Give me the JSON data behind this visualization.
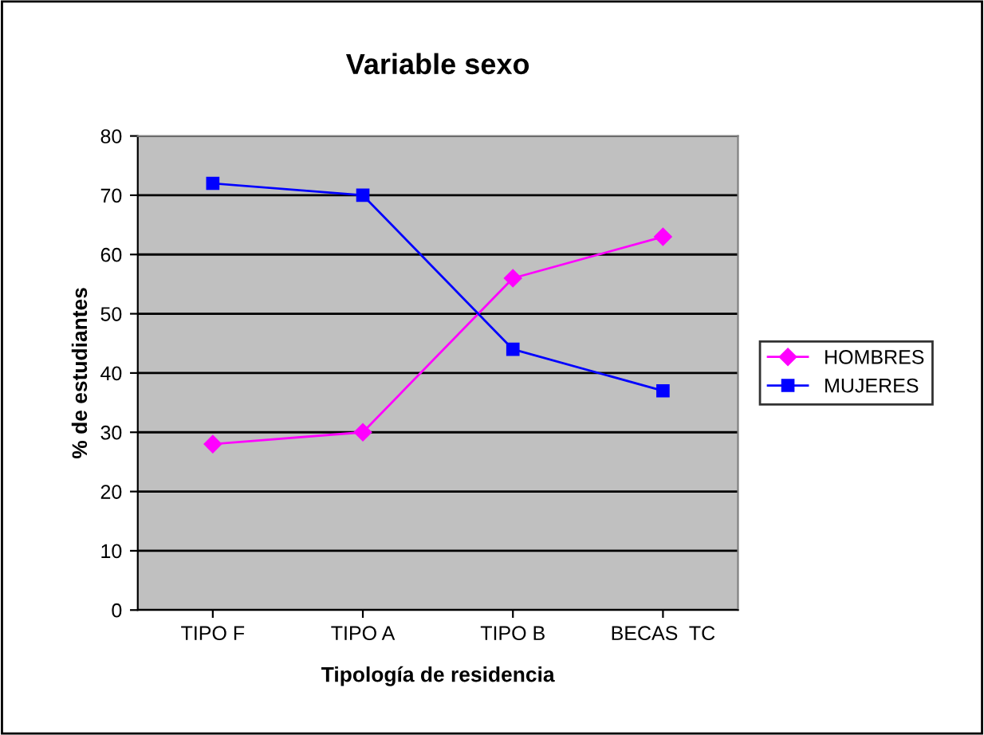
{
  "chart_data": {
    "type": "line",
    "title": "Variable sexo",
    "xlabel": "Tipología de residencia",
    "ylabel": "% de estudiantes",
    "categories": [
      "TIPO F",
      "TIPO A",
      "TIPO B",
      "BECAS  TC"
    ],
    "series": [
      {
        "name": "HOMBRES",
        "color": "#ff00ff",
        "values": [
          28,
          30,
          56,
          63
        ],
        "marker": "diamond"
      },
      {
        "name": "MUJERES",
        "color": "#0000ff",
        "values": [
          72,
          70,
          44,
          37
        ],
        "marker": "square"
      }
    ],
    "ylim": [
      0,
      80
    ],
    "yticks": [
      0,
      10,
      20,
      30,
      40,
      50,
      60,
      70,
      80
    ],
    "grid": "y",
    "legend": "right",
    "line_style": "solid"
  }
}
